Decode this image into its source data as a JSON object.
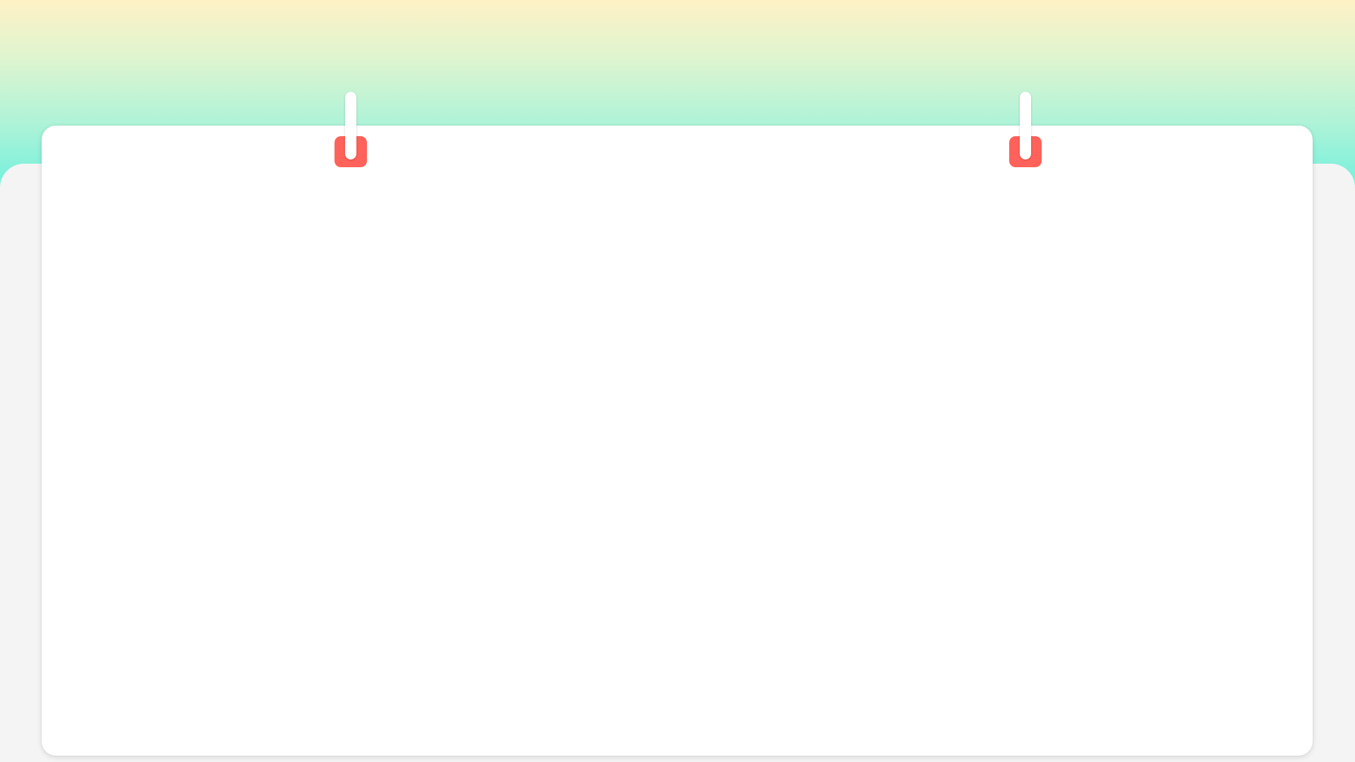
{
  "page": {
    "colors": {
      "gradient_top": "#fff1c6",
      "gradient_bottom": "#70f0dc",
      "floor": "#f4f4f4",
      "board": "#ffffff",
      "clip_accent": "#ff625a",
      "clip_ring": "#ffffff"
    },
    "icons": [
      "binder-clip-icon",
      "binder-clip-icon"
    ]
  }
}
